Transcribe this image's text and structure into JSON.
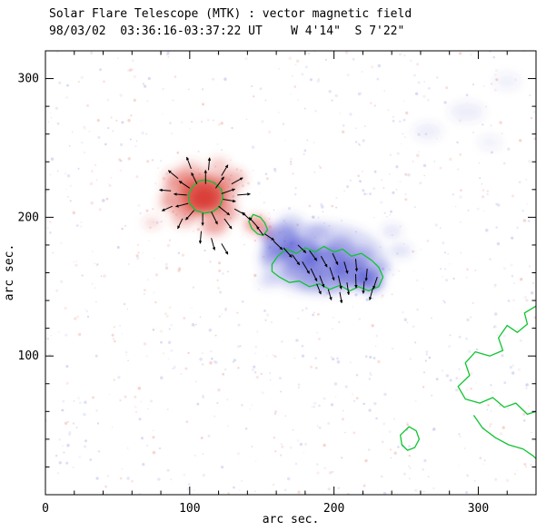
{
  "title": "Solar Flare Telescope (MTK) : vector magnetic field",
  "subtitle": "98/03/02  03:36:16-03:37:22 UT    W 4'14\"  S 7'22\"",
  "axes": {
    "xlabel": "arc sec.",
    "ylabel": "arc sec.",
    "x_range": [
      0,
      340
    ],
    "y_range": [
      0,
      320
    ],
    "x_major_ticks": [
      0,
      100,
      200,
      300
    ],
    "y_major_ticks": [
      100,
      200,
      300
    ],
    "minor_tick_step": 20
  },
  "chart_data": {
    "type": "heatmap",
    "title": "Solar Flare Telescope (MTK) : vector magnetic field",
    "xlabel": "arc sec.",
    "ylabel": "arc sec.",
    "xlim": [
      0,
      340
    ],
    "ylim": [
      0,
      320
    ],
    "description": "Vector magnetogram: red = positive line-of-sight polarity, blue = negative polarity, green lines = contours, short black segments with arrowheads = transverse magnetic field vectors",
    "colors": {
      "positive": "#d93a31",
      "negative": "#4549cf",
      "contour": "#0fc432",
      "vector": "#000000",
      "background": "#ffffff"
    },
    "blobs": [
      {
        "pol": "pos",
        "x": 109,
        "y": 216,
        "rx": 16,
        "ry": 13,
        "o": 0.7
      },
      {
        "pol": "pos",
        "x": 110,
        "y": 214,
        "rx": 9,
        "ry": 8,
        "o": 0.85
      },
      {
        "pol": "pos",
        "x": 107,
        "y": 217,
        "rx": 26,
        "ry": 17,
        "o": 0.36
      },
      {
        "pol": "pos",
        "x": 92,
        "y": 228,
        "rx": 10,
        "ry": 7,
        "o": 0.3
      },
      {
        "pol": "pos",
        "x": 96,
        "y": 200,
        "rx": 9,
        "ry": 7,
        "o": 0.3
      },
      {
        "pol": "pos",
        "x": 117,
        "y": 194,
        "rx": 9,
        "ry": 7,
        "o": 0.42
      },
      {
        "pol": "pos",
        "x": 126,
        "y": 203,
        "rx": 8,
        "ry": 6,
        "o": 0.4
      },
      {
        "pol": "pos",
        "x": 130,
        "y": 228,
        "rx": 9,
        "ry": 7,
        "o": 0.33
      },
      {
        "pol": "pos",
        "x": 146,
        "y": 195,
        "rx": 8,
        "ry": 6,
        "o": 0.5
      },
      {
        "pol": "pos",
        "x": 153,
        "y": 189,
        "rx": 5,
        "ry": 4,
        "o": 0.38
      },
      {
        "pol": "pos",
        "x": 74,
        "y": 196,
        "rx": 6,
        "ry": 4,
        "o": 0.2
      },
      {
        "pol": "pos",
        "x": 85,
        "y": 210,
        "rx": 7,
        "ry": 5,
        "o": 0.25
      },
      {
        "pol": "pos",
        "x": 120,
        "y": 238,
        "rx": 7,
        "ry": 5,
        "o": 0.26
      },
      {
        "pol": "pos",
        "x": 101,
        "y": 236,
        "rx": 8,
        "ry": 5,
        "o": 0.24
      },
      {
        "pol": "neg",
        "x": 192,
        "y": 170,
        "rx": 44,
        "ry": 26,
        "o": 0.2
      },
      {
        "pol": "neg",
        "x": 163,
        "y": 184,
        "rx": 13,
        "ry": 11,
        "o": 0.45
      },
      {
        "pol": "neg",
        "x": 177,
        "y": 174,
        "rx": 14,
        "ry": 11,
        "o": 0.5
      },
      {
        "pol": "neg",
        "x": 194,
        "y": 167,
        "rx": 16,
        "ry": 11,
        "o": 0.5
      },
      {
        "pol": "neg",
        "x": 212,
        "y": 160,
        "rx": 13,
        "ry": 10,
        "o": 0.55
      },
      {
        "pol": "neg",
        "x": 225,
        "y": 154,
        "rx": 9,
        "ry": 8,
        "o": 0.6
      },
      {
        "pol": "neg",
        "x": 184,
        "y": 155,
        "rx": 10,
        "ry": 7,
        "o": 0.35
      },
      {
        "pol": "neg",
        "x": 204,
        "y": 178,
        "rx": 10,
        "ry": 8,
        "o": 0.35
      },
      {
        "pol": "neg",
        "x": 219,
        "y": 172,
        "rx": 9,
        "ry": 7,
        "o": 0.33
      },
      {
        "pol": "neg",
        "x": 171,
        "y": 161,
        "rx": 8,
        "ry": 6,
        "o": 0.33
      },
      {
        "pol": "neg",
        "x": 233,
        "y": 164,
        "rx": 7,
        "ry": 5,
        "o": 0.28
      },
      {
        "pol": "neg",
        "x": 197,
        "y": 151,
        "rx": 8,
        "ry": 5,
        "o": 0.33
      },
      {
        "pol": "neg",
        "x": 158,
        "y": 172,
        "rx": 8,
        "ry": 6,
        "o": 0.35
      },
      {
        "pol": "neg",
        "x": 246,
        "y": 176,
        "rx": 8,
        "ry": 5,
        "o": 0.16
      },
      {
        "pol": "neg",
        "x": 240,
        "y": 190,
        "rx": 7,
        "ry": 5,
        "o": 0.14
      },
      {
        "pol": "neg",
        "x": 154,
        "y": 154,
        "rx": 7,
        "ry": 5,
        "o": 0.16
      },
      {
        "pol": "neg",
        "x": 170,
        "y": 196,
        "rx": 9,
        "ry": 6,
        "o": 0.22
      },
      {
        "pol": "neg",
        "x": 188,
        "y": 189,
        "rx": 9,
        "ry": 6,
        "o": 0.22
      },
      {
        "pol": "neg",
        "x": 265,
        "y": 262,
        "rx": 10,
        "ry": 6,
        "o": 0.1
      },
      {
        "pol": "neg",
        "x": 292,
        "y": 276,
        "rx": 12,
        "ry": 7,
        "o": 0.1
      },
      {
        "pol": "neg",
        "x": 308,
        "y": 254,
        "rx": 8,
        "ry": 5,
        "o": 0.08
      },
      {
        "pol": "neg",
        "x": 320,
        "y": 298,
        "rx": 9,
        "ry": 6,
        "o": 0.08
      }
    ],
    "contours": [
      {
        "name": "positive-core-contour",
        "closed": true,
        "points": [
          [
            111,
            227
          ],
          [
            117,
            225
          ],
          [
            122,
            220
          ],
          [
            123,
            214
          ],
          [
            121,
            208
          ],
          [
            116,
            204
          ],
          [
            110,
            203
          ],
          [
            104,
            205
          ],
          [
            100,
            210
          ],
          [
            99,
            216
          ],
          [
            102,
            222
          ],
          [
            106,
            226
          ]
        ]
      },
      {
        "name": "small-positive-patch-contour",
        "closed": true,
        "points": [
          [
            144,
            202
          ],
          [
            149,
            200
          ],
          [
            152,
            196
          ],
          [
            154,
            191
          ],
          [
            151,
            187
          ],
          [
            147,
            188
          ],
          [
            143,
            192
          ],
          [
            141,
            197
          ]
        ]
      },
      {
        "name": "negative-region-contour",
        "closed": true,
        "points": [
          [
            157,
            166
          ],
          [
            161,
            172
          ],
          [
            167,
            177
          ],
          [
            174,
            174
          ],
          [
            180,
            178
          ],
          [
            187,
            175
          ],
          [
            193,
            179
          ],
          [
            200,
            175
          ],
          [
            206,
            177
          ],
          [
            212,
            172
          ],
          [
            219,
            174
          ],
          [
            226,
            169
          ],
          [
            231,
            164
          ],
          [
            234,
            157
          ],
          [
            231,
            150
          ],
          [
            224,
            147
          ],
          [
            217,
            150
          ],
          [
            211,
            147
          ],
          [
            204,
            151
          ],
          [
            197,
            148
          ],
          [
            190,
            152
          ],
          [
            183,
            150
          ],
          [
            176,
            154
          ],
          [
            169,
            153
          ],
          [
            162,
            157
          ],
          [
            157,
            161
          ]
        ]
      },
      {
        "name": "southeast-large-contour",
        "closed": false,
        "points": [
          [
            340,
            136
          ],
          [
            332,
            131
          ],
          [
            334,
            123
          ],
          [
            327,
            117
          ],
          [
            320,
            122
          ],
          [
            314,
            113
          ],
          [
            317,
            104
          ],
          [
            308,
            100
          ],
          [
            298,
            103
          ],
          [
            291,
            95
          ],
          [
            294,
            86
          ],
          [
            286,
            78
          ],
          [
            291,
            69
          ],
          [
            301,
            66
          ],
          [
            310,
            70
          ],
          [
            318,
            63
          ],
          [
            326,
            66
          ],
          [
            334,
            58
          ],
          [
            340,
            60
          ]
        ]
      },
      {
        "name": "southeast-lower-arc",
        "closed": false,
        "points": [
          [
            297,
            57
          ],
          [
            303,
            48
          ],
          [
            312,
            41
          ],
          [
            321,
            36
          ],
          [
            331,
            33
          ],
          [
            338,
            28
          ],
          [
            340,
            26
          ]
        ]
      },
      {
        "name": "small-south-loop",
        "closed": true,
        "points": [
          [
            252,
            49
          ],
          [
            257,
            46
          ],
          [
            259,
            40
          ],
          [
            256,
            34
          ],
          [
            251,
            32
          ],
          [
            247,
            36
          ],
          [
            246,
            43
          ]
        ]
      }
    ],
    "vectors": [
      [
        111,
        224,
        90,
        10
      ],
      [
        118,
        221,
        55,
        10
      ],
      [
        122,
        217,
        20,
        10
      ],
      [
        123,
        213,
        -10,
        9
      ],
      [
        120,
        208,
        -40,
        10
      ],
      [
        115,
        204,
        -65,
        10
      ],
      [
        109,
        203,
        -90,
        9
      ],
      [
        103,
        205,
        -130,
        9
      ],
      [
        99,
        210,
        -165,
        9
      ],
      [
        98,
        216,
        175,
        9
      ],
      [
        100,
        221,
        145,
        9
      ],
      [
        105,
        224,
        115,
        9
      ],
      [
        113,
        234,
        85,
        9
      ],
      [
        122,
        230,
        60,
        9
      ],
      [
        129,
        224,
        30,
        9
      ],
      [
        133,
        216,
        5,
        9
      ],
      [
        131,
        206,
        -30,
        9
      ],
      [
        124,
        199,
        -55,
        9
      ],
      [
        101,
        235,
        110,
        9
      ],
      [
        92,
        228,
        140,
        9
      ],
      [
        87,
        219,
        175,
        8
      ],
      [
        88,
        208,
        -155,
        8
      ],
      [
        95,
        199,
        -115,
        8
      ],
      [
        108,
        190,
        -95,
        9
      ],
      [
        115,
        185,
        -75,
        9
      ],
      [
        122,
        181,
        -60,
        9
      ],
      [
        142,
        198,
        135,
        8
      ],
      [
        147,
        193,
        130,
        9
      ],
      [
        151,
        187,
        125,
        8
      ],
      [
        152,
        188,
        -35,
        8
      ],
      [
        158,
        183,
        -45,
        9
      ],
      [
        165,
        178,
        -50,
        9
      ],
      [
        171,
        173,
        -55,
        9
      ],
      [
        178,
        168,
        -60,
        10
      ],
      [
        184,
        163,
        -65,
        10
      ],
      [
        190,
        158,
        -70,
        9
      ],
      [
        197,
        164,
        -72,
        10
      ],
      [
        203,
        158,
        -78,
        10
      ],
      [
        209,
        153,
        -82,
        9
      ],
      [
        215,
        159,
        -88,
        10
      ],
      [
        221,
        154,
        -95,
        9
      ],
      [
        227,
        149,
        -105,
        9
      ],
      [
        175,
        180,
        -45,
        8
      ],
      [
        183,
        176,
        -55,
        9
      ],
      [
        191,
        172,
        -62,
        9
      ],
      [
        199,
        174,
        -66,
        9
      ],
      [
        207,
        168,
        -74,
        9
      ],
      [
        215,
        170,
        -85,
        9
      ],
      [
        223,
        163,
        -95,
        9
      ],
      [
        230,
        157,
        -108,
        9
      ],
      [
        188,
        152,
        -68,
        8
      ],
      [
        196,
        148,
        -74,
        8
      ],
      [
        204,
        146,
        -80,
        8
      ]
    ],
    "speckle": {
      "seed": 7,
      "count": 950,
      "pos_color": "#f0b0a8",
      "neg_color": "#b4b8e6",
      "pos_center": [
        111,
        215
      ],
      "neg_center": [
        196,
        168
      ]
    }
  }
}
